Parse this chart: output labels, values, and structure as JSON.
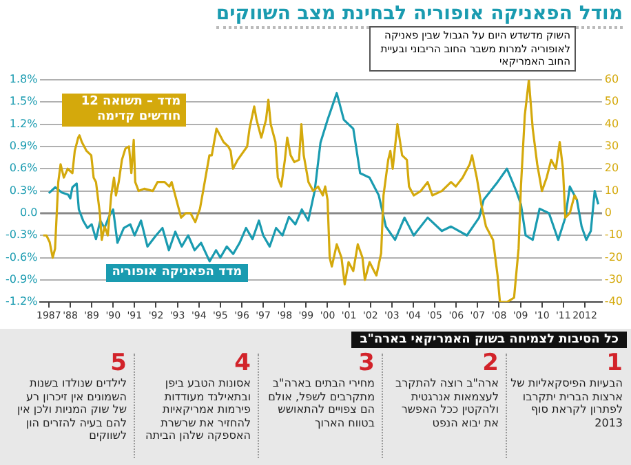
{
  "chart_data": {
    "type": "line",
    "title": "מודל הפאניקה אופוריה לבחינת מצב השווקים",
    "xlim": [
      1986.6,
      2012.8
    ],
    "xticks": [
      {
        "value": 1987,
        "label": "1987"
      },
      {
        "value": 1988,
        "label": "'88"
      },
      {
        "value": 1989,
        "label": "'89"
      },
      {
        "value": 1990,
        "label": "'90"
      },
      {
        "value": 1991,
        "label": "'91"
      },
      {
        "value": 1992,
        "label": "'92"
      },
      {
        "value": 1993,
        "label": "'93"
      },
      {
        "value": 1994,
        "label": "'94"
      },
      {
        "value": 1995,
        "label": "'95"
      },
      {
        "value": 1996,
        "label": "'96"
      },
      {
        "value": 1997,
        "label": "'97"
      },
      {
        "value": 1998,
        "label": "'98"
      },
      {
        "value": 1999,
        "label": "'99"
      },
      {
        "value": 2000,
        "label": "'00"
      },
      {
        "value": 2001,
        "label": "'01"
      },
      {
        "value": 2002,
        "label": "'02"
      },
      {
        "value": 2003,
        "label": "'03"
      },
      {
        "value": 2004,
        "label": "'04"
      },
      {
        "value": 2005,
        "label": "'05"
      },
      {
        "value": 2006,
        "label": "'06"
      },
      {
        "value": 2007,
        "label": "'07"
      },
      {
        "value": 2008,
        "label": "'08"
      },
      {
        "value": 2009,
        "label": "'09"
      },
      {
        "value": 2010,
        "label": "'10"
      },
      {
        "value": 2011,
        "label": "'11"
      },
      {
        "value": 2012,
        "label": "2012"
      }
    ],
    "ylim": [
      -1.2,
      1.8
    ],
    "yticks": [
      {
        "value": -1.2,
        "label": "-1.2%"
      },
      {
        "value": -0.9,
        "label": "-0.9%"
      },
      {
        "value": -0.6,
        "label": "-0.6%"
      },
      {
        "value": -0.3,
        "label": "-0.3%"
      },
      {
        "value": 0,
        "label": "0.0"
      },
      {
        "value": 0.3,
        "label": "0.3%"
      },
      {
        "value": 0.6,
        "label": "0.6%"
      },
      {
        "value": 0.9,
        "label": "0.9%"
      },
      {
        "value": 1.2,
        "label": "1.2%"
      },
      {
        "value": 1.5,
        "label": "1.5%"
      },
      {
        "value": 1.8,
        "label": "1.8%"
      }
    ],
    "y2lim": [
      -40,
      60
    ],
    "y2ticks": [
      -40,
      -30,
      -20,
      -10,
      0,
      10,
      20,
      30,
      40,
      50,
      60
    ],
    "grid": "y",
    "legend": false,
    "marker": "none",
    "line_style": "solid",
    "ref_lines": [
      {
        "axis": "y",
        "value": 0,
        "color": "#888888"
      }
    ],
    "series": [
      {
        "name": "מדד – תשואה 12 חודשים קדימה",
        "color": "#d4a90c",
        "axis": "y2",
        "x": [
          1986.74,
          1986.89,
          1987.04,
          1987.18,
          1987.29,
          1987.44,
          1987.55,
          1987.7,
          1987.88,
          1988.1,
          1988.21,
          1988.37,
          1988.43,
          1988.54,
          1988.76,
          1988.98,
          1989.09,
          1989.2,
          1989.38,
          1989.47,
          1989.6,
          1989.75,
          1989.91,
          1990.04,
          1990.13,
          1990.26,
          1990.41,
          1990.57,
          1990.74,
          1990.85,
          1990.96,
          1991.03,
          1991.19,
          1991.45,
          1991.85,
          1992.07,
          1992.4,
          1992.62,
          1992.73,
          1993.06,
          1993.17,
          1993.39,
          1993.61,
          1993.83,
          1994.05,
          1994.27,
          1994.49,
          1994.6,
          1994.82,
          1994.93,
          1995.15,
          1995.37,
          1995.48,
          1995.59,
          1995.81,
          1996.25,
          1996.36,
          1996.58,
          1996.69,
          1996.91,
          1997.13,
          1997.24,
          1997.35,
          1997.57,
          1997.68,
          1997.84,
          1998.01,
          1998.12,
          1998.28,
          1998.45,
          1998.67,
          1998.78,
          1998.89,
          1999.0,
          1999.11,
          1999.33,
          1999.56,
          1999.78,
          1999.89,
          2000.0,
          2000.1,
          2000.2,
          2000.43,
          2000.65,
          2000.8,
          2000.98,
          2001.2,
          2001.41,
          2001.63,
          2001.74,
          2001.96,
          2002.17,
          2002.28,
          2002.5,
          2002.61,
          2002.83,
          2002.93,
          2003.04,
          2003.26,
          2003.48,
          2003.7,
          2003.8,
          2004.02,
          2004.35,
          2004.67,
          2004.89,
          2005.33,
          2005.76,
          2005.98,
          2006.3,
          2006.63,
          2006.74,
          2006.96,
          2007.17,
          2007.39,
          2007.72,
          2007.93,
          2008.04,
          2008.37,
          2008.7,
          2008.91,
          2009.02,
          2009.2,
          2009.39,
          2009.57,
          2009.78,
          2010.0,
          2010.22,
          2010.43,
          2010.65,
          2010.83,
          2010.98,
          2011.09,
          2011.3,
          2011.52,
          2011.63
        ],
        "values": [
          -10,
          -10,
          -13,
          -20,
          -16,
          14,
          22,
          16,
          20,
          18,
          28,
          34,
          35,
          32,
          28,
          26,
          16,
          14,
          0,
          -12,
          -6,
          -10,
          8,
          16,
          8,
          14,
          24,
          29,
          30,
          18,
          33,
          14,
          10,
          11,
          10,
          14,
          14,
          12,
          14,
          2,
          -2,
          0,
          0,
          -4,
          2,
          14,
          26,
          26,
          38,
          36,
          32,
          30,
          28,
          20,
          24,
          30,
          38,
          48,
          42,
          34,
          42,
          51,
          40,
          32,
          16,
          12,
          24,
          34,
          26,
          23,
          24,
          40,
          26,
          20,
          14,
          10,
          12,
          8,
          12,
          6,
          -20,
          -24,
          -14,
          -20,
          -32,
          -22,
          -26,
          -14,
          -20,
          -30,
          -22,
          -26,
          -28,
          -18,
          8,
          24,
          28,
          20,
          40,
          26,
          24,
          12,
          8,
          10,
          14,
          8,
          10,
          14,
          12,
          16,
          22,
          26,
          16,
          4,
          -6,
          -12,
          -28,
          -40,
          -40,
          -38,
          -16,
          12,
          44,
          60,
          38,
          22,
          10,
          16,
          24,
          20,
          32,
          20,
          -2,
          0,
          8,
          6
        ]
      },
      {
        "name": "מדד הפאניקה אופוריה",
        "color": "#1a9bb0",
        "axis": "y",
        "x": [
          1987.0,
          1987.3,
          1987.6,
          1987.9,
          1988.0,
          1988.1,
          1988.3,
          1988.4,
          1988.6,
          1988.8,
          1989.0,
          1989.2,
          1989.4,
          1989.6,
          1989.8,
          1990.0,
          1990.2,
          1990.5,
          1990.8,
          1991.0,
          1991.3,
          1991.6,
          1992.0,
          1992.3,
          1992.6,
          1992.9,
          1993.2,
          1993.5,
          1993.8,
          1994.1,
          1994.5,
          1994.8,
          1995.0,
          1995.3,
          1995.6,
          1995.9,
          1996.2,
          1996.5,
          1996.8,
          1997.0,
          1997.3,
          1997.6,
          1997.9,
          1998.2,
          1998.5,
          1998.8,
          1999.1,
          1999.4,
          1999.67,
          2000.0,
          2000.43,
          2000.76,
          2001.2,
          2001.52,
          2001.96,
          2002.39,
          2002.72,
          2003.15,
          2003.59,
          2004.02,
          2004.67,
          2005.33,
          2005.76,
          2006.5,
          2007.07,
          2007.28,
          2007.93,
          2008.37,
          2008.8,
          2009.02,
          2009.24,
          2009.57,
          2009.89,
          2010.33,
          2010.76,
          2011.09,
          2011.3,
          2011.63,
          2011.85,
          2012.07,
          2012.28,
          2012.46,
          2012.63
        ],
        "values": [
          0.27,
          0.35,
          0.28,
          0.25,
          0.2,
          0.35,
          0.4,
          0.05,
          -0.1,
          -0.2,
          -0.15,
          -0.35,
          -0.1,
          -0.2,
          -0.05,
          0.05,
          -0.4,
          -0.2,
          -0.15,
          -0.3,
          -0.1,
          -0.45,
          -0.3,
          -0.2,
          -0.5,
          -0.25,
          -0.45,
          -0.3,
          -0.5,
          -0.4,
          -0.65,
          -0.5,
          -0.6,
          -0.45,
          -0.55,
          -0.4,
          -0.2,
          -0.35,
          -0.1,
          -0.3,
          -0.45,
          -0.2,
          -0.3,
          -0.05,
          -0.15,
          0.05,
          -0.1,
          0.3,
          0.95,
          1.26,
          1.62,
          1.26,
          1.14,
          0.54,
          0.48,
          0.24,
          -0.18,
          -0.36,
          -0.06,
          -0.3,
          -0.06,
          -0.24,
          -0.18,
          -0.3,
          -0.06,
          0.18,
          0.42,
          0.6,
          0.3,
          0.12,
          -0.3,
          -0.36,
          0.06,
          0.0,
          -0.36,
          -0.06,
          0.36,
          0.18,
          -0.18,
          -0.36,
          -0.24,
          0.3,
          0.12
        ]
      }
    ],
    "annotations": [
      "השוק מדשדש היום על הגבול שבין פאניקה לאופוריה למרות משבר החוב הריבוני ובעיית החוב האמריקאי",
      "כל הסיבות לצמיחה בשוק האמריקאי בארה\"ב",
      "1",
      "הבעיות הפיסקאליות של ארצות הברית יתקרבו לפתרון לקראת סוף 2013",
      "2",
      "ארה\"ב רוצה להתקרב לעצמאות אנרגטית ולהקטין ככל האפשר את יבוא הנפט",
      "3",
      "מחירי הבתים בארה\"ב מתקרבים לשפל, אולם הם צפויים להתאושש בטווח הארוך",
      "4",
      "אסונות הטבע ביפן ובתאילנד מעודדות פירמות אמריקאיות להחזיר את שרשרת האספקה שלהן הביתה",
      "5",
      "לילדים שנולדו בשנות השמונים אין זיכרון רע של שוק המניות ולכן אין להם בעיה להזרים הון לשווקים"
    ]
  }
}
